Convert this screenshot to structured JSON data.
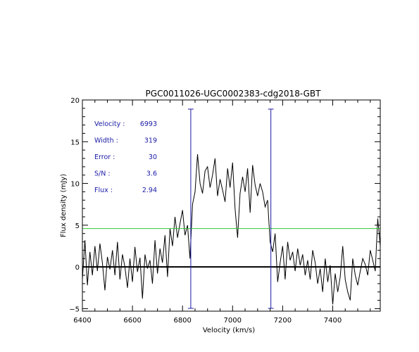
{
  "chart_data": {
    "type": "line",
    "title": "PGC0011026-UGC0002383-cdg2018-GBT",
    "xlabel": "Velocity (km/s)",
    "ylabel": "Flux density (mJy)",
    "xlim": [
      6400,
      7590
    ],
    "ylim": [
      -5.3,
      20
    ],
    "xticks": [
      6400,
      6600,
      6800,
      7000,
      7200,
      7400
    ],
    "xtick_labels": [
      "6400",
      "6600",
      "6800",
      "7000",
      "7200",
      "7400"
    ],
    "yticks": [
      -5,
      0,
      5,
      10,
      15,
      20
    ],
    "ytick_labels": [
      "−5",
      "0",
      "5",
      "10",
      "15",
      "20"
    ],
    "grid": false,
    "annotations": [
      {
        "label": "Velocity :",
        "value": "6993"
      },
      {
        "label": "Width :",
        "value": "319"
      },
      {
        "label": "Error :",
        "value": "30"
      },
      {
        "label": "S/N :",
        "value": "3.6"
      },
      {
        "label": "Flux :",
        "value": "2.94"
      }
    ],
    "reference_lines": {
      "zero_level": 0,
      "threshold_level": 4.6,
      "threshold_color": "#32c832",
      "marker_velocities": [
        6833,
        7153
      ],
      "marker_color": "#1a1aa6"
    },
    "series": [
      {
        "x": [
          6400,
          6410,
          6420,
          6430,
          6440,
          6450,
          6460,
          6470,
          6480,
          6490,
          6500,
          6510,
          6520,
          6530,
          6540,
          6550,
          6560,
          6570,
          6580,
          6590,
          6600,
          6610,
          6620,
          6630,
          6640,
          6650,
          6660,
          6670,
          6680,
          6690,
          6700,
          6710,
          6720,
          6730,
          6740,
          6750,
          6760,
          6770,
          6780,
          6790,
          6800,
          6810,
          6820,
          6830,
          6840,
          6850,
          6860,
          6870,
          6880,
          6890,
          6900,
          6910,
          6920,
          6930,
          6940,
          6950,
          6960,
          6970,
          6980,
          6990,
          7000,
          7010,
          7020,
          7030,
          7040,
          7050,
          7060,
          7070,
          7080,
          7090,
          7100,
          7110,
          7120,
          7130,
          7140,
          7150,
          7160,
          7170,
          7180,
          7190,
          7200,
          7210,
          7220,
          7230,
          7240,
          7250,
          7260,
          7270,
          7280,
          7290,
          7300,
          7310,
          7320,
          7330,
          7340,
          7350,
          7360,
          7370,
          7380,
          7390,
          7400,
          7410,
          7420,
          7430,
          7440,
          7450,
          7460,
          7470,
          7480,
          7490,
          7500,
          7510,
          7520,
          7530,
          7540,
          7550,
          7560,
          7570,
          7580,
          7590
        ],
        "y": [
          -1.5,
          3.2,
          -2.2,
          1.8,
          -1.0,
          2.5,
          -0.5,
          2.8,
          0.5,
          -2.8,
          1.2,
          -0.3,
          2.0,
          -1.0,
          3.0,
          -1.5,
          1.5,
          0.0,
          -2.5,
          1.0,
          -1.8,
          2.4,
          -0.6,
          1.1,
          -3.8,
          1.5,
          -0.2,
          0.8,
          -2.0,
          3.2,
          -0.8,
          2.2,
          0.5,
          3.8,
          -1.2,
          4.6,
          2.5,
          6.0,
          3.5,
          5.2,
          6.8,
          3.8,
          5.0,
          1.0,
          7.5,
          9.0,
          13.5,
          10.0,
          8.8,
          11.5,
          12.0,
          9.5,
          11.0,
          13.0,
          8.5,
          10.5,
          9.2,
          7.8,
          11.8,
          9.5,
          12.5,
          7.0,
          3.5,
          8.8,
          10.8,
          9.0,
          11.8,
          6.5,
          12.2,
          9.8,
          8.5,
          10.0,
          9.0,
          7.2,
          8.0,
          3.0,
          1.8,
          4.0,
          -1.8,
          0.5,
          2.5,
          -1.5,
          3.0,
          0.8,
          1.8,
          -0.5,
          2.2,
          0.2,
          1.5,
          -1.0,
          0.8,
          -1.5,
          2.0,
          0.5,
          -2.0,
          -0.2,
          -3.0,
          1.0,
          -1.8,
          0.2,
          -4.5,
          -0.8,
          -3.0,
          -1.2,
          2.5,
          -1.5,
          -3.0,
          -4.0,
          1.0,
          -1.0,
          -2.2,
          -0.5,
          1.0,
          0.3,
          -1.0,
          2.0,
          0.8,
          -0.5,
          5.8,
          2.5
        ]
      }
    ]
  }
}
